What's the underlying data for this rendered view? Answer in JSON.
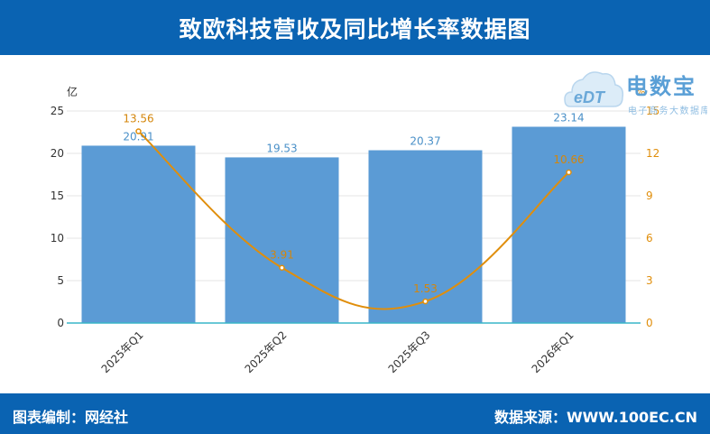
{
  "header": {
    "title": "致欧科技营收及同比增长率数据图"
  },
  "footer": {
    "left_text": "图表编制：网经社",
    "right_text": "数据来源：WWW.100EC.CN"
  },
  "logo": {
    "main_text": "电数宝",
    "sub_text": "电子商务大数据库",
    "badge_text": "eDT"
  },
  "colors": {
    "bar": "#5b9bd5",
    "line": "#e08e0b",
    "header": "#0a63b2",
    "left_axis_text": "#333333",
    "right_axis_text": "#e08e0b",
    "bar_label": "#4a90c8",
    "line_label": "#d4860b"
  },
  "chart_data": {
    "type": "bar",
    "categories": [
      "2025年Q1",
      "2025年Q2",
      "2025年Q3",
      "2026年Q1"
    ],
    "series": [
      {
        "name": "",
        "type": "bar",
        "axis": "left",
        "values": [
          20.91,
          19.53,
          20.37,
          23.14
        ],
        "labels": [
          "20.91",
          "19.53",
          "20.37",
          "23.14"
        ]
      },
      {
        "name": "",
        "type": "line",
        "axis": "right",
        "values": [
          13.56,
          3.91,
          1.53,
          10.66
        ],
        "labels": [
          "13.56",
          "3.91",
          "1.53",
          "10.66"
        ]
      }
    ],
    "y_left": {
      "unit": "亿",
      "min": 0,
      "max": 25,
      "ticks": [
        "0",
        "5",
        "10",
        "15",
        "20",
        "25"
      ]
    },
    "y_right": {
      "unit": "%",
      "min": 0,
      "max": 15,
      "ticks": [
        "0",
        "3",
        "6",
        "9",
        "12",
        "15"
      ]
    },
    "grid": true
  }
}
